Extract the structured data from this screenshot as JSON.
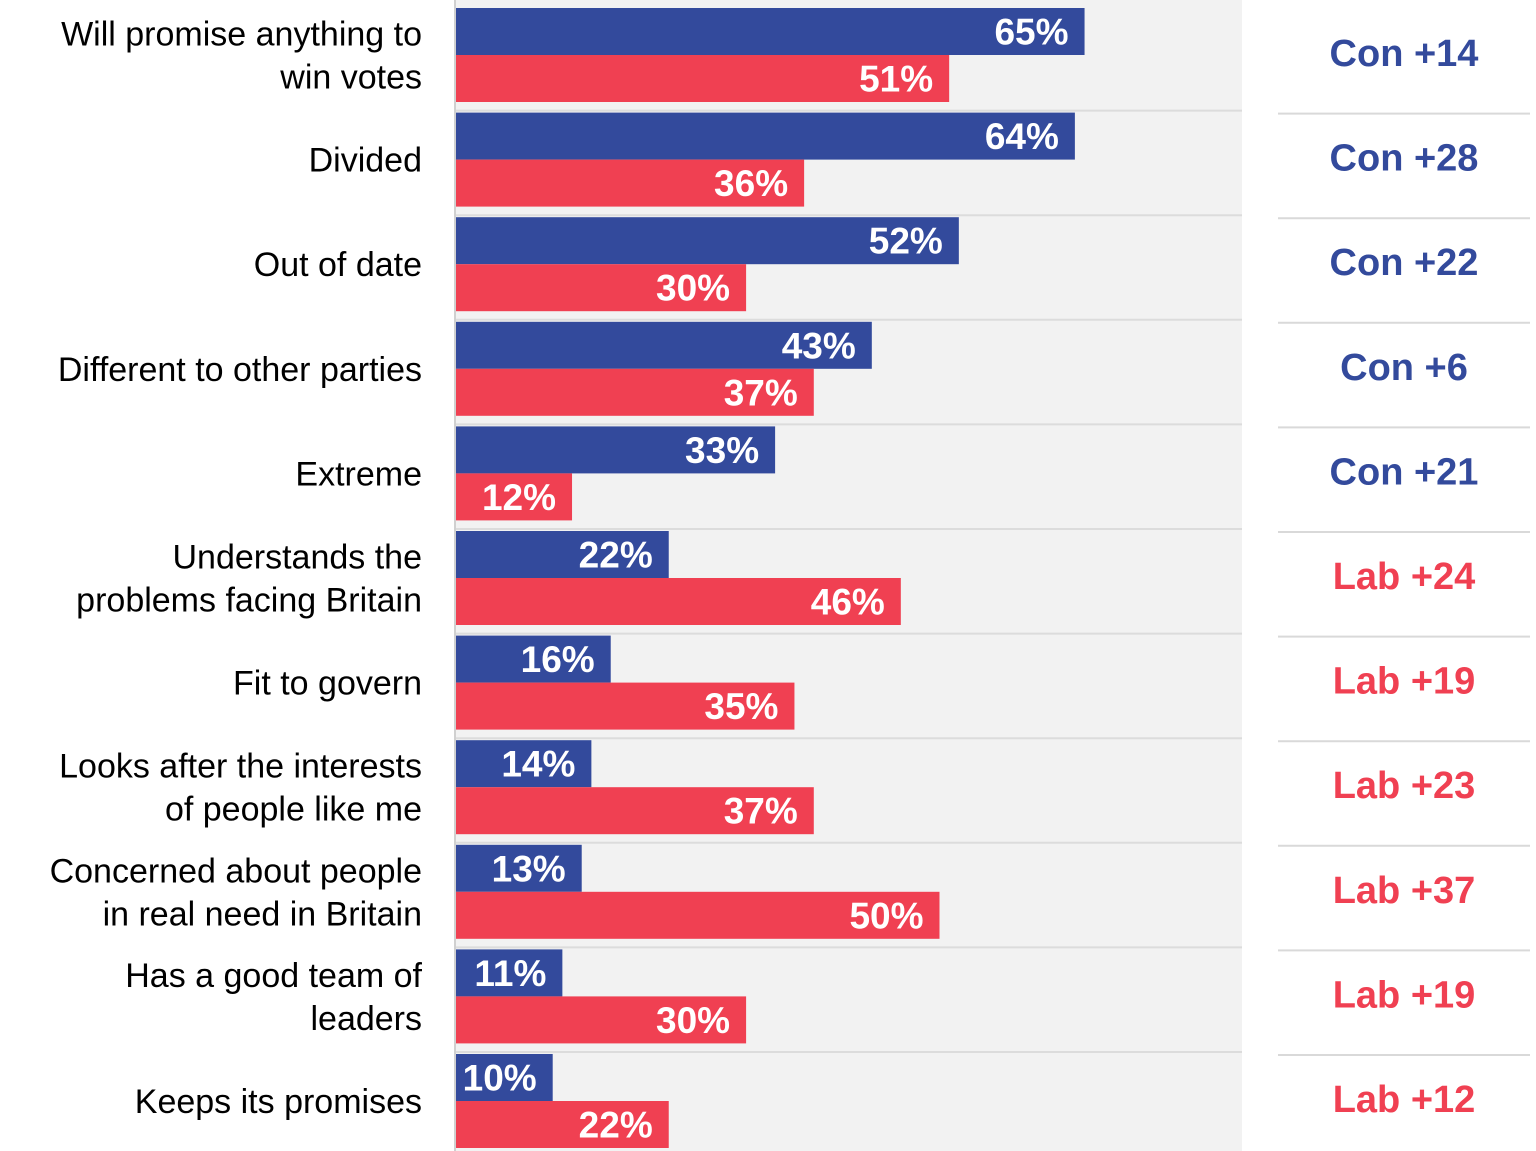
{
  "colors": {
    "conservative": "#334a9c",
    "labour": "#f04052",
    "plot_background": "#f2f2f2",
    "row_separator": "#d9d9d9",
    "label_text": "#000000",
    "bar_value_text": "#ffffff"
  },
  "chart_data": {
    "type": "bar",
    "orientation": "horizontal",
    "grouped": true,
    "xlim": [
      0,
      100
    ],
    "grid": false,
    "legend": "none",
    "categories": [
      "Will promise anything to\nwin votes",
      "Divided",
      "Out of date",
      "Different to other parties",
      "Extreme",
      "Understands the\nproblems facing Britain",
      "Fit to govern",
      "Looks after the interests\nof people like me",
      "Concerned about people\nin real need in Britain",
      "Has a good team of\nleaders",
      "Keeps its promises"
    ],
    "series": [
      {
        "color_key": "conservative",
        "values": [
          65,
          64,
          52,
          43,
          33,
          22,
          16,
          14,
          13,
          11,
          10
        ]
      },
      {
        "color_key": "labour",
        "values": [
          51,
          36,
          30,
          37,
          12,
          46,
          35,
          37,
          50,
          30,
          22
        ]
      }
    ],
    "value_suffix": "%",
    "differences": [
      {
        "label": "Con +14",
        "party": "conservative"
      },
      {
        "label": "Con +28",
        "party": "conservative"
      },
      {
        "label": "Con +22",
        "party": "conservative"
      },
      {
        "label": "Con +6",
        "party": "conservative"
      },
      {
        "label": "Con +21",
        "party": "conservative"
      },
      {
        "label": "Lab +24",
        "party": "labour"
      },
      {
        "label": "Lab +19",
        "party": "labour"
      },
      {
        "label": "Lab +23",
        "party": "labour"
      },
      {
        "label": "Lab +37",
        "party": "labour"
      },
      {
        "label": "Lab +19",
        "party": "labour"
      },
      {
        "label": "Lab +12",
        "party": "labour"
      }
    ]
  }
}
